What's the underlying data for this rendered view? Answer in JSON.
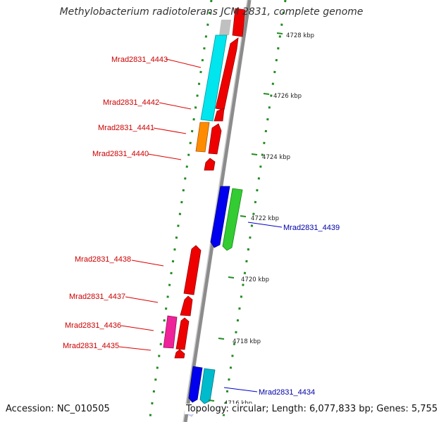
{
  "title": "Methylobacterium radiotolerans JCM 2831, complete genome",
  "footer": {
    "accession": "Accession: NC_010505",
    "topology": "Topology: circular; Length: 6,077,833 bp; Genes: 5,755"
  },
  "scale_ticks": [
    "4728 kbp",
    "4726 kbp",
    "4724 kbp",
    "4722 kbp",
    "4720 kbp",
    "4718 kbp",
    "4716 kbp"
  ],
  "genes_forward": [
    {
      "label": "Mrad2831_4443",
      "color": "#cc0000"
    },
    {
      "label": "Mrad2831_4442",
      "color": "#cc0000"
    },
    {
      "label": "Mrad2831_4441",
      "color": "#cc0000"
    },
    {
      "label": "Mrad2831_4440",
      "color": "#cc0000"
    },
    {
      "label": "Mrad2831_4438",
      "color": "#cc0000"
    },
    {
      "label": "Mrad2831_4437",
      "color": "#cc0000"
    },
    {
      "label": "Mrad2831_4436",
      "color": "#cc0000"
    },
    {
      "label": "Mrad2831_4435",
      "color": "#cc0000"
    }
  ],
  "genes_reverse": [
    {
      "label": "Mrad2831_4439",
      "color": "#0000aa"
    },
    {
      "label": "Mrad2831_4434",
      "color": "#0000aa"
    }
  ],
  "colors": {
    "red_feature": "#ee0000",
    "cyan_feature": "#00e5ee",
    "orange_feature": "#ff8c00",
    "blue_feature": "#0000ee",
    "green_feature": "#33cc33",
    "magenta_feature": "#ee2299",
    "teal_feature": "#00bbcc",
    "gc_tick": "#228b22",
    "backbone": "#8c8c8c"
  }
}
